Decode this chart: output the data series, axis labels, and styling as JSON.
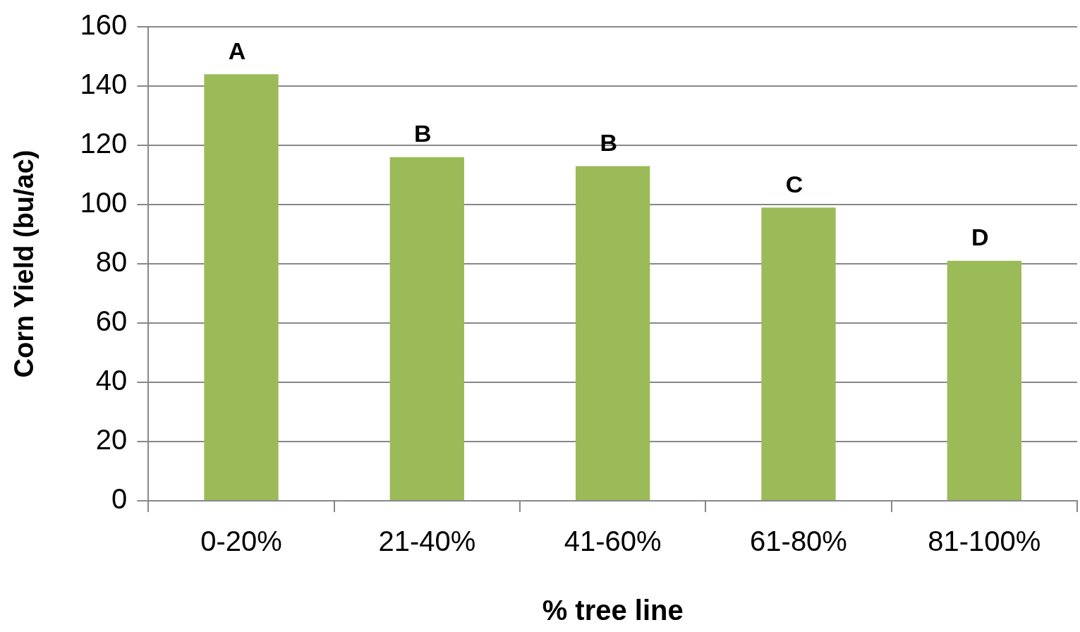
{
  "chart_data": {
    "type": "bar",
    "xlabel": "% tree line",
    "ylabel": "Corn Yield (bu/ac)",
    "categories": [
      "0-20%",
      "21-40%",
      "41-60%",
      "61-80%",
      "81-100%"
    ],
    "values": [
      144,
      116,
      113,
      99,
      81
    ],
    "color": "#9bbb59",
    "ylim": [
      0,
      160
    ],
    "yticks": [
      0,
      20,
      40,
      60,
      80,
      100,
      120,
      140,
      160
    ],
    "grid": "y",
    "annotations": [
      {
        "text": "A",
        "x": "0-20%",
        "y": 144
      },
      {
        "text": "B",
        "x": "21-40%",
        "y": 116
      },
      {
        "text": "B",
        "x": "41-60%",
        "y": 113
      },
      {
        "text": "C",
        "x": "61-80%",
        "y": 99
      },
      {
        "text": "D",
        "x": "81-100%",
        "y": 81
      }
    ]
  }
}
